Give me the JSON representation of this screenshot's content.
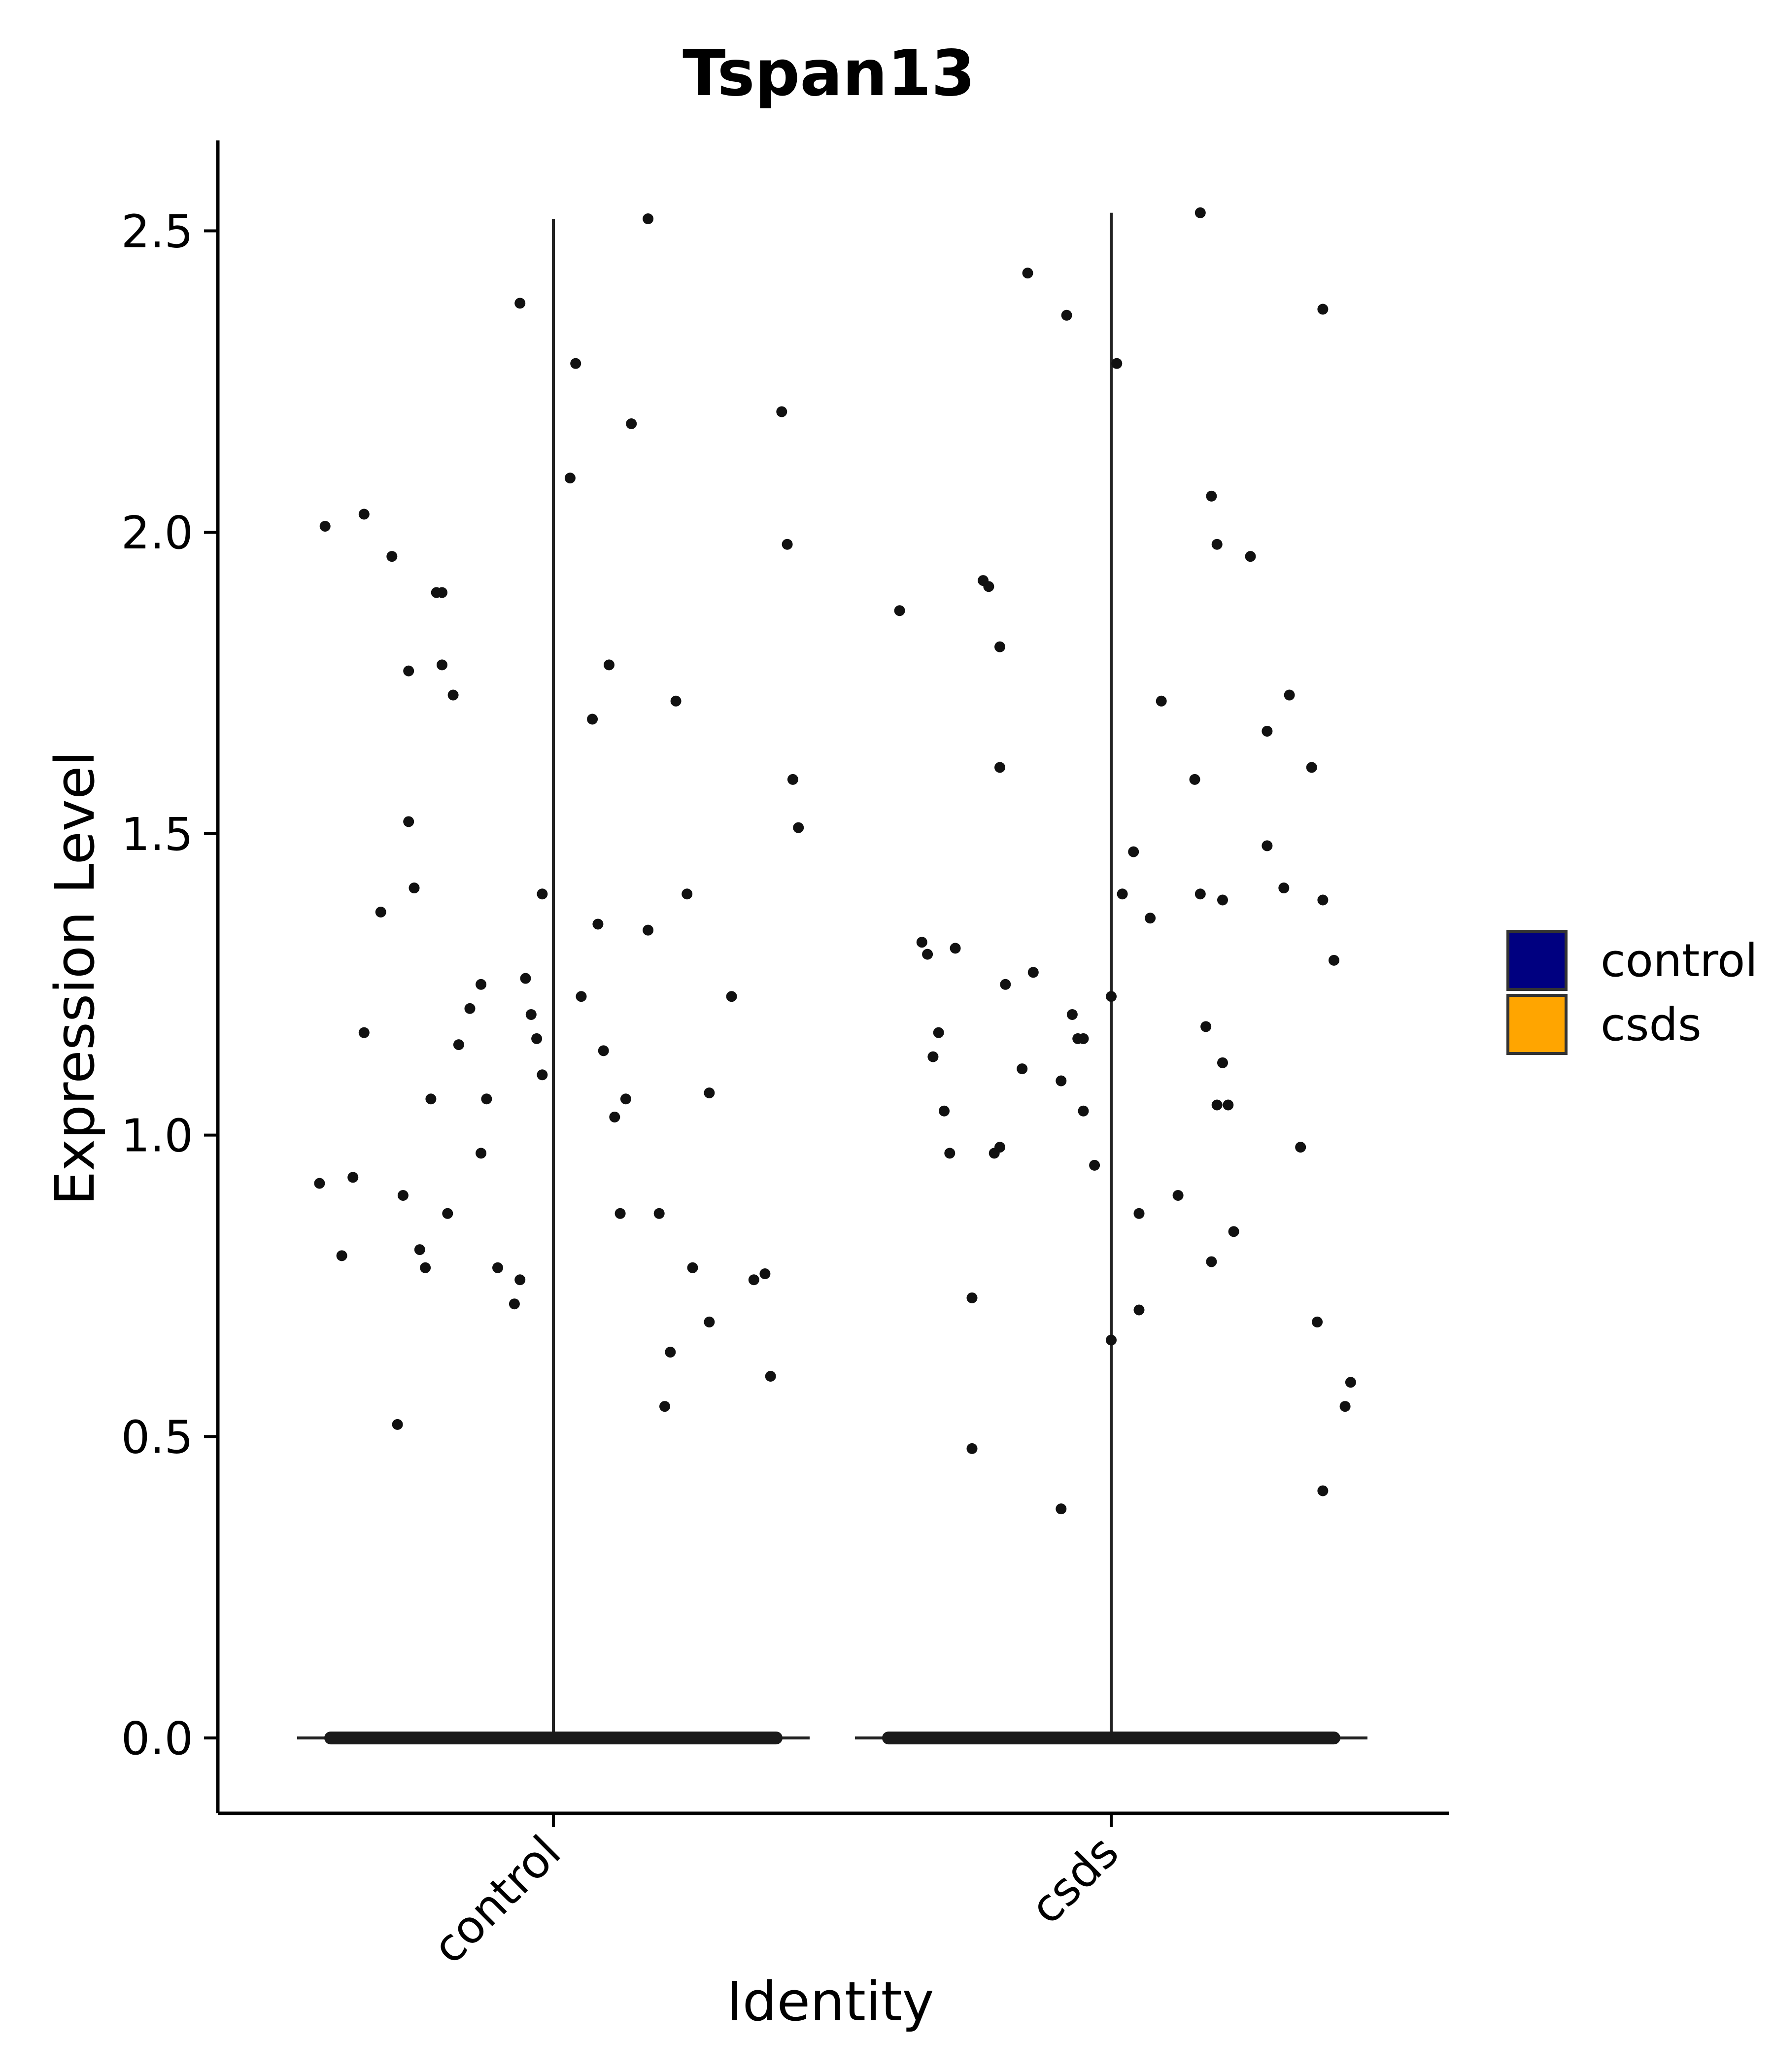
{
  "chart_data": {
    "type": "scatter",
    "title": "Tspan13",
    "xlabel": "Identity",
    "ylabel": "Expression Level",
    "categories": [
      "control",
      "csds"
    ],
    "ylim": [
      -0.125,
      2.65
    ],
    "yticks": [
      "0.0",
      "0.5",
      "1.0",
      "1.5",
      "2.0",
      "2.5"
    ],
    "grid": false,
    "legend": {
      "position": "right",
      "items": [
        {
          "label": "control",
          "color": "#000080"
        },
        {
          "label": "csds",
          "color": "#FFA500"
        }
      ]
    },
    "violin_max": [
      2.52,
      2.53
    ],
    "zero_band": {
      "value": 0.0,
      "note_count_high": true
    },
    "series": [
      {
        "name": "control",
        "x_jitter": [
          -0.42,
          -0.38,
          -0.36,
          -0.34,
          -0.31,
          -0.29,
          -0.28,
          -0.27,
          -0.26,
          -0.25,
          -0.24,
          -0.23,
          -0.22,
          -0.21,
          -0.2,
          -0.2,
          -0.18,
          -0.15,
          -0.13,
          -0.12,
          -0.1,
          -0.07,
          -0.05,
          -0.04,
          -0.03,
          -0.06,
          -0.02,
          0.04,
          0.05,
          0.07,
          0.08,
          0.09,
          0.11,
          0.12,
          0.14,
          0.17,
          0.2,
          0.21,
          0.22,
          0.24,
          0.28,
          0.28,
          0.36,
          0.38,
          0.39,
          0.41,
          0.42,
          0.43,
          0.44,
          -0.41,
          -0.34,
          -0.26,
          -0.19,
          -0.13,
          -0.06,
          0.03,
          0.1,
          0.13,
          0.17,
          0.19,
          0.25,
          0.32,
          -0.17,
          -0.02
        ],
        "y": [
          0.92,
          0.8,
          0.93,
          1.17,
          1.37,
          1.96,
          0.52,
          0.9,
          1.52,
          1.41,
          0.81,
          0.78,
          1.06,
          1.9,
          1.78,
          1.9,
          1.73,
          1.21,
          1.25,
          1.06,
          0.78,
          0.72,
          1.26,
          1.2,
          1.16,
          2.38,
          1.1,
          2.28,
          1.23,
          1.69,
          1.35,
          1.14,
          1.03,
          0.87,
          2.18,
          1.34,
          0.55,
          0.64,
          1.72,
          1.4,
          1.07,
          0.69,
          0.76,
          0.77,
          0.6,
          2.2,
          1.98,
          1.59,
          1.51,
          2.01,
          2.03,
          1.77,
          0.87,
          0.97,
          0.76,
          2.09,
          1.78,
          1.06,
          2.52,
          0.87,
          0.78,
          1.23,
          1.15,
          1.4
        ]
      },
      {
        "name": "csds",
        "x_jitter": [
          -0.38,
          -0.34,
          -0.33,
          -0.32,
          -0.31,
          -0.3,
          -0.29,
          -0.28,
          -0.25,
          -0.23,
          -0.22,
          -0.21,
          -0.2,
          -0.2,
          -0.19,
          -0.16,
          -0.15,
          -0.14,
          -0.09,
          -0.09,
          -0.08,
          -0.07,
          -0.06,
          -0.05,
          -0.05,
          -0.03,
          0.0,
          0.02,
          0.04,
          0.05,
          0.07,
          0.09,
          0.12,
          0.15,
          0.16,
          0.17,
          0.18,
          0.18,
          0.19,
          0.2,
          0.21,
          0.22,
          0.25,
          0.28,
          0.28,
          0.32,
          0.34,
          0.36,
          0.37,
          0.38,
          0.38,
          0.4,
          0.42,
          0.43,
          -0.25,
          -0.2,
          0.0,
          0.01,
          0.05,
          0.31,
          0.38,
          0.16,
          0.19,
          0.2
        ],
        "y": [
          1.87,
          1.32,
          1.3,
          1.13,
          1.17,
          1.04,
          0.97,
          1.31,
          0.48,
          1.92,
          1.91,
          0.97,
          0.98,
          1.81,
          1.25,
          1.11,
          2.43,
          1.27,
          0.38,
          1.09,
          2.36,
          1.2,
          1.16,
          1.16,
          1.04,
          0.95,
          0.66,
          1.4,
          1.47,
          0.71,
          1.36,
          1.72,
          0.9,
          1.59,
          2.53,
          1.18,
          2.06,
          0.79,
          1.98,
          1.12,
          1.05,
          0.84,
          1.96,
          1.67,
          1.48,
          1.73,
          0.98,
          1.61,
          0.69,
          2.37,
          0.41,
          1.29,
          0.55,
          0.59,
          0.73,
          1.61,
          1.23,
          2.28,
          0.87,
          1.41,
          1.39,
          1.4,
          1.05,
          1.39
        ]
      }
    ]
  }
}
